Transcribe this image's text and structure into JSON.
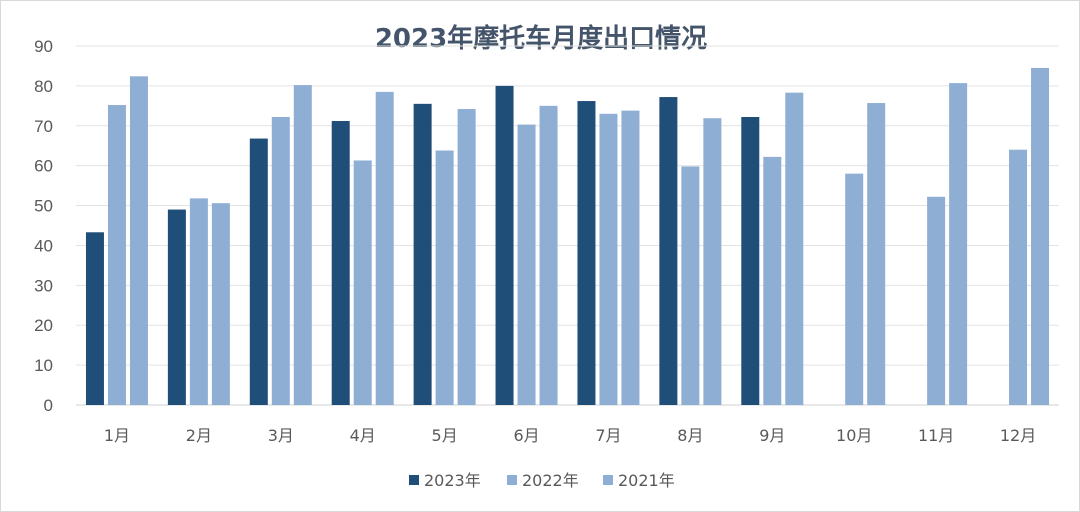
{
  "chart_data": {
    "type": "bar",
    "title": "2023年摩托车月度出口情况",
    "xlabel": "",
    "ylabel": "",
    "ylim": [
      0,
      90
    ],
    "yticks": [
      0,
      10,
      20,
      30,
      40,
      50,
      60,
      70,
      80,
      90
    ],
    "grid": true,
    "legend_position": "bottom",
    "categories": [
      "1月",
      "2月",
      "3月",
      "4月",
      "5月",
      "6月",
      "7月",
      "8月",
      "9月",
      "10月",
      "11月",
      "12月"
    ],
    "series": [
      {
        "name": "2023年",
        "color": "#1f4e79",
        "values": [
          43.3,
          49,
          66.8,
          71.2,
          75.5,
          80,
          76.2,
          77.2,
          72.2,
          null,
          null,
          null
        ]
      },
      {
        "name": "2022年",
        "color": "#8faed4",
        "values": [
          75.2,
          51.8,
          72.2,
          61.3,
          63.8,
          70.3,
          73,
          59.8,
          62.2,
          58,
          52.2,
          64
        ]
      },
      {
        "name": "2021年",
        "color": "#8faed4",
        "values": [
          82.4,
          50.6,
          80.2,
          78.5,
          74.2,
          75,
          73.8,
          71.9,
          78.3,
          75.7,
          80.7,
          84.5
        ]
      }
    ]
  }
}
